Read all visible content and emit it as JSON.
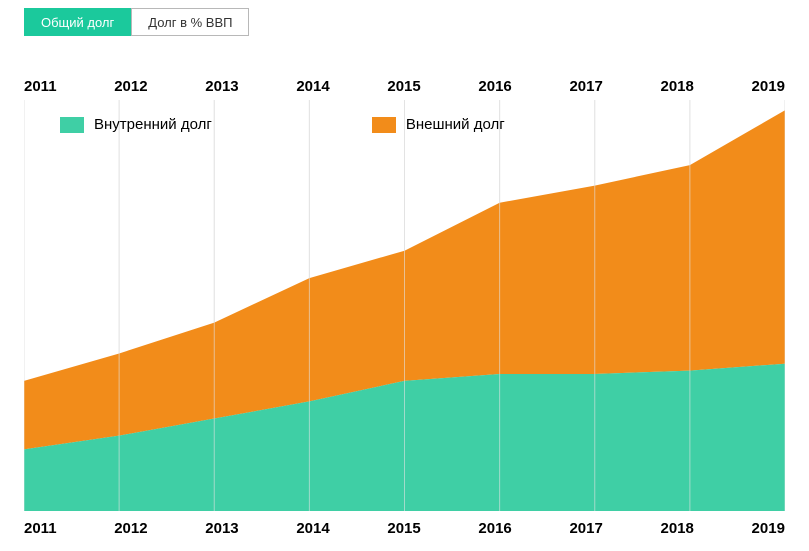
{
  "tabs": {
    "active_label": "Общий долг",
    "inactive_label": "Долг в % ВВП",
    "active_bg": "#1bc99c",
    "active_border": "#1bc99c",
    "inactive_border": "#b8b8b8",
    "inactive_color": "#333333"
  },
  "legend": {
    "series1_label": "Внутренний долг",
    "series1_color": "#3fcfa5",
    "series2_label": "Внешний долг",
    "series2_color": "#f28c1a"
  },
  "chart": {
    "type": "area-stacked",
    "categories": [
      "2011",
      "2012",
      "2013",
      "2014",
      "2015",
      "2016",
      "2017",
      "2018",
      "2019"
    ],
    "series1_values": [
      18,
      22,
      27,
      32,
      38,
      40,
      40,
      41,
      43
    ],
    "series2_values": [
      20,
      24,
      28,
      36,
      38,
      50,
      55,
      60,
      74
    ],
    "y_max": 120,
    "background_color": "#ffffff",
    "grid_color": "#e3e3e3",
    "series1_fill": "#3fcfa5",
    "series2_fill": "#f28c1a",
    "axis_label_fontsize": 15,
    "axis_label_weight": 700,
    "axis_label_color": "#000000"
  }
}
